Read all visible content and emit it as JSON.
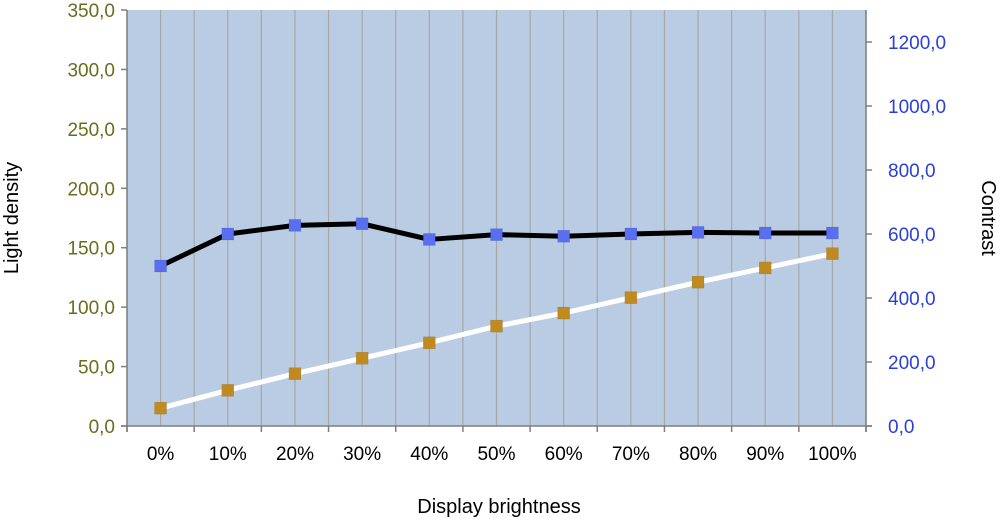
{
  "chart_data": {
    "type": "line",
    "xlabel": "Display brightness",
    "ylabel_left": "Light density",
    "ylabel_right": "Contrast",
    "categories": [
      "0%",
      "10%",
      "20%",
      "30%",
      "40%",
      "50%",
      "60%",
      "70%",
      "80%",
      "90%",
      "100%"
    ],
    "y_left_lim": [
      0,
      350
    ],
    "y_right_lim": [
      0,
      1300
    ],
    "y_left_ticks": [
      "0,0",
      "50,0",
      "100,0",
      "150,0",
      "200,0",
      "250,0",
      "300,0",
      "350,0"
    ],
    "y_right_ticks": [
      "0,0",
      "200,0",
      "400,0",
      "600,0",
      "800,0",
      "1000,0",
      "1200,0"
    ],
    "grid": true,
    "series": [
      {
        "axis": "right",
        "line_color": "#000000",
        "marker_color": "#5a6ff0",
        "values": [
          500,
          600,
          627,
          632,
          583,
          598,
          593,
          600,
          605,
          603,
          603
        ]
      },
      {
        "axis": "left",
        "line_color": "#ffffff",
        "marker_color": "#c08a20",
        "values": [
          15,
          30,
          44,
          57,
          70,
          84,
          95,
          108,
          121,
          133,
          145
        ]
      }
    ],
    "colors": {
      "plot_bg": "#b9cce4",
      "grid": "#a8a8a0",
      "left_ticks": "#6b6b1e",
      "right_ticks": "#2a3fd8"
    }
  }
}
